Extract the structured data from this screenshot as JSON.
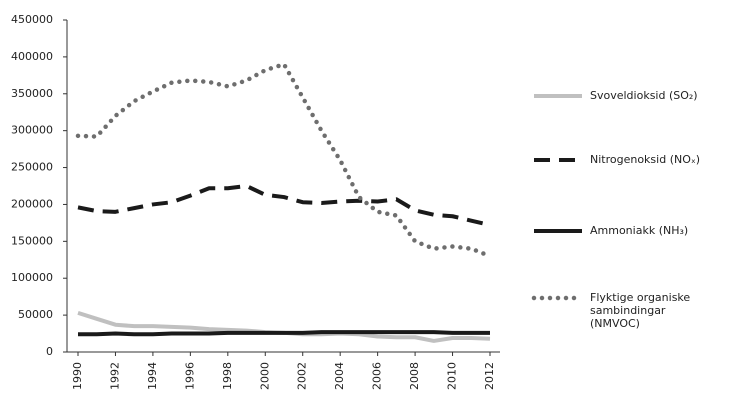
{
  "chart_data": {
    "type": "line",
    "x": [
      1990,
      1991,
      1992,
      1993,
      1994,
      1995,
      1996,
      1997,
      1998,
      1999,
      2000,
      2001,
      2002,
      2003,
      2004,
      2005,
      2006,
      2007,
      2008,
      2009,
      2010,
      2011,
      2012
    ],
    "xlim": [
      1990,
      2012
    ],
    "xticks": [
      1990,
      1992,
      1994,
      1996,
      1998,
      2000,
      2002,
      2004,
      2006,
      2008,
      2010,
      2012
    ],
    "ylim": [
      0,
      450000
    ],
    "yticks": [
      0,
      50000,
      100000,
      150000,
      200000,
      250000,
      300000,
      350000,
      400000,
      450000
    ],
    "legend": "right",
    "series": [
      {
        "name": "Svoveldioksid (SO₂)",
        "color": "#c0c0c0",
        "style": "solid",
        "values": [
          53000,
          45000,
          37000,
          35000,
          35000,
          34000,
          33000,
          31000,
          30000,
          29000,
          27000,
          26000,
          24000,
          24000,
          25000,
          24000,
          21000,
          20000,
          20000,
          15000,
          19000,
          19000,
          18000
        ]
      },
      {
        "name": "Nitrogenoksid (NOₓ)",
        "color": "#1a1a1a",
        "style": "dashed",
        "values": [
          196000,
          191000,
          190000,
          195000,
          200000,
          203000,
          212000,
          222000,
          222000,
          225000,
          213000,
          210000,
          203000,
          202000,
          204000,
          205000,
          204000,
          207000,
          192000,
          186000,
          184000,
          178000,
          172000
        ]
      },
      {
        "name": "Ammoniakk (NH₃)",
        "color": "#1a1a1a",
        "style": "solid",
        "values": [
          24000,
          24000,
          25000,
          24000,
          24000,
          25000,
          25000,
          25000,
          26000,
          26000,
          26000,
          26000,
          26000,
          27000,
          27000,
          27000,
          27000,
          27000,
          27000,
          27000,
          26000,
          26000,
          26000
        ]
      },
      {
        "name": "Flyktige organiske sambindingar (NMVOC)",
        "color": "#6e6e6e",
        "style": "dotted",
        "values": [
          293000,
          292000,
          320000,
          340000,
          353000,
          365000,
          368000,
          366000,
          360000,
          368000,
          382000,
          390000,
          345000,
          300000,
          260000,
          210000,
          190000,
          185000,
          150000,
          140000,
          143000,
          140000,
          130000
        ]
      }
    ]
  }
}
